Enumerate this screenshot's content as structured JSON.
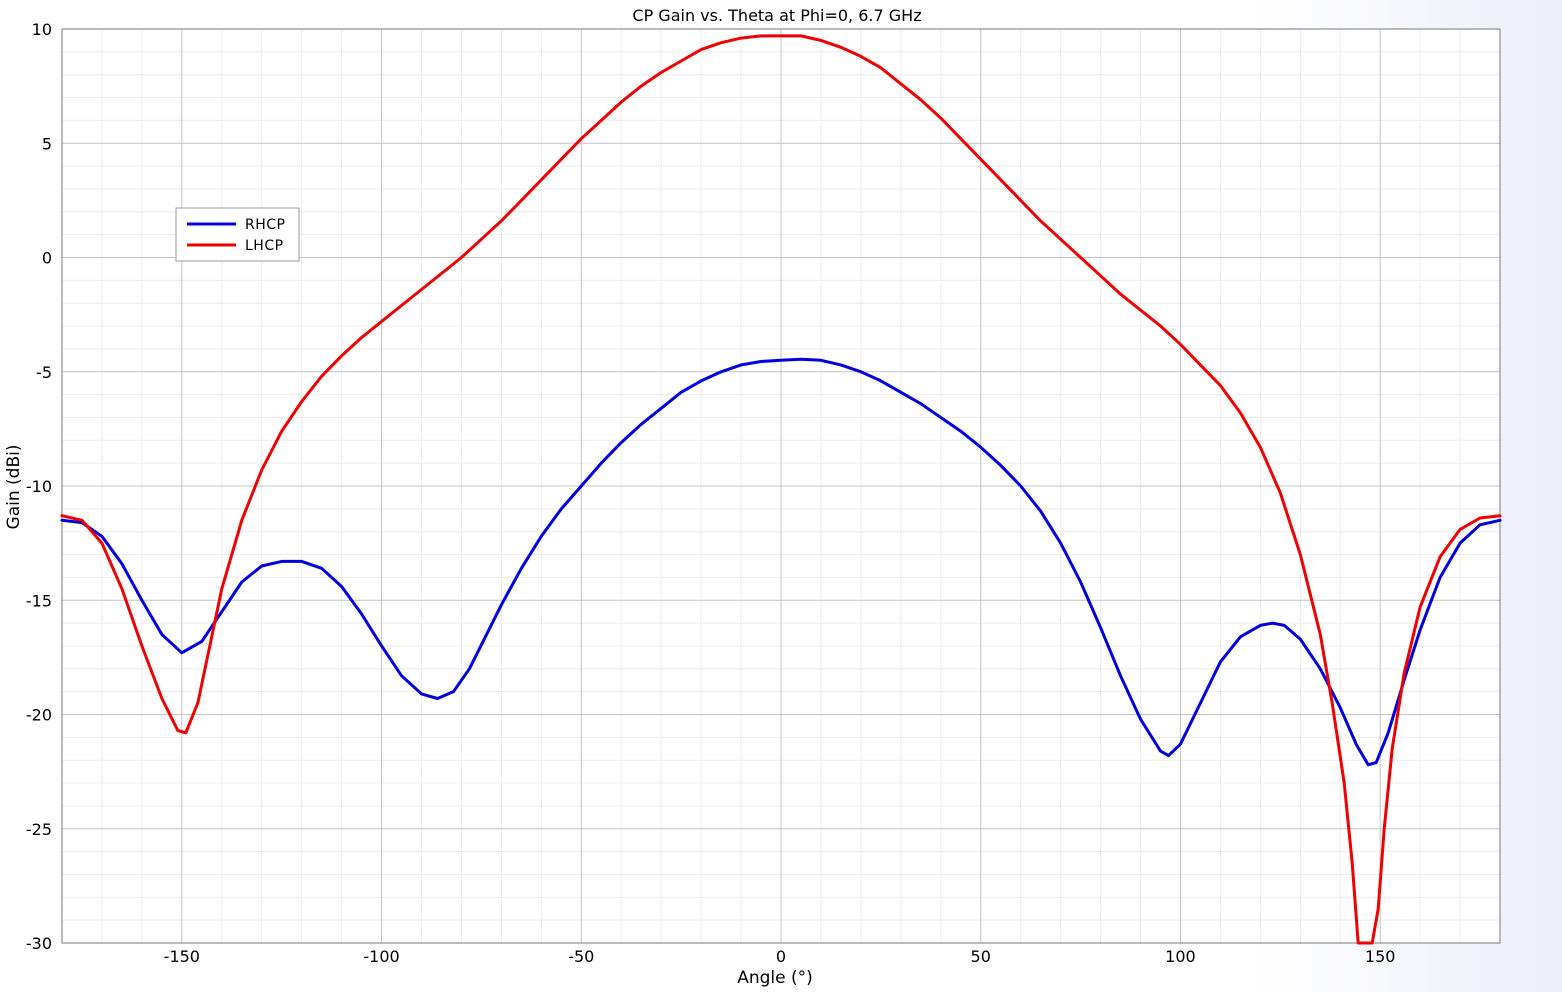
{
  "chart_data": {
    "type": "line",
    "title": "CP Gain vs. Theta at Phi=0, 6.7 GHz",
    "xlabel": "Angle (°)",
    "ylabel": "Gain (dBi)",
    "xlim": [
      -180,
      180
    ],
    "ylim": [
      -30,
      10
    ],
    "x_ticks": [
      -150,
      -100,
      -50,
      0,
      50,
      100,
      150
    ],
    "y_ticks": [
      10,
      5,
      0,
      -5,
      -10,
      -15,
      -20,
      -25,
      -30
    ],
    "grid": true,
    "legend_position": "top-left",
    "series": [
      {
        "name": "RHCP",
        "color": "#0000dd",
        "points": [
          [
            -180,
            -11.5
          ],
          [
            -175,
            -11.6
          ],
          [
            -170,
            -12.2
          ],
          [
            -165,
            -13.4
          ],
          [
            -160,
            -15.0
          ],
          [
            -155,
            -16.5
          ],
          [
            -150,
            -17.3
          ],
          [
            -145,
            -16.8
          ],
          [
            -140,
            -15.5
          ],
          [
            -135,
            -14.2
          ],
          [
            -130,
            -13.5
          ],
          [
            -125,
            -13.3
          ],
          [
            -120,
            -13.3
          ],
          [
            -115,
            -13.6
          ],
          [
            -110,
            -14.4
          ],
          [
            -105,
            -15.6
          ],
          [
            -100,
            -17.0
          ],
          [
            -95,
            -18.3
          ],
          [
            -90,
            -19.1
          ],
          [
            -86,
            -19.3
          ],
          [
            -82,
            -19.0
          ],
          [
            -78,
            -18.0
          ],
          [
            -74,
            -16.6
          ],
          [
            -70,
            -15.2
          ],
          [
            -65,
            -13.6
          ],
          [
            -60,
            -12.2
          ],
          [
            -55,
            -11.0
          ],
          [
            -50,
            -10.0
          ],
          [
            -45,
            -9.0
          ],
          [
            -40,
            -8.1
          ],
          [
            -35,
            -7.3
          ],
          [
            -30,
            -6.6
          ],
          [
            -25,
            -5.9
          ],
          [
            -20,
            -5.4
          ],
          [
            -15,
            -5.0
          ],
          [
            -10,
            -4.7
          ],
          [
            -5,
            -4.55
          ],
          [
            0,
            -4.5
          ],
          [
            5,
            -4.45
          ],
          [
            10,
            -4.5
          ],
          [
            15,
            -4.7
          ],
          [
            20,
            -5.0
          ],
          [
            25,
            -5.4
          ],
          [
            30,
            -5.9
          ],
          [
            35,
            -6.4
          ],
          [
            40,
            -7.0
          ],
          [
            45,
            -7.6
          ],
          [
            50,
            -8.3
          ],
          [
            55,
            -9.1
          ],
          [
            60,
            -10.0
          ],
          [
            65,
            -11.1
          ],
          [
            70,
            -12.5
          ],
          [
            75,
            -14.2
          ],
          [
            80,
            -16.2
          ],
          [
            85,
            -18.3
          ],
          [
            90,
            -20.2
          ],
          [
            95,
            -21.6
          ],
          [
            97,
            -21.8
          ],
          [
            100,
            -21.3
          ],
          [
            105,
            -19.5
          ],
          [
            110,
            -17.7
          ],
          [
            115,
            -16.6
          ],
          [
            120,
            -16.1
          ],
          [
            123,
            -16.0
          ],
          [
            126,
            -16.1
          ],
          [
            130,
            -16.7
          ],
          [
            135,
            -18.0
          ],
          [
            140,
            -19.7
          ],
          [
            144,
            -21.3
          ],
          [
            147,
            -22.2
          ],
          [
            149,
            -22.1
          ],
          [
            152,
            -20.8
          ],
          [
            156,
            -18.5
          ],
          [
            160,
            -16.3
          ],
          [
            165,
            -14.0
          ],
          [
            170,
            -12.5
          ],
          [
            175,
            -11.7
          ],
          [
            180,
            -11.5
          ]
        ]
      },
      {
        "name": "LHCP",
        "color": "#ee0000",
        "points": [
          [
            -180,
            -11.3
          ],
          [
            -175,
            -11.5
          ],
          [
            -170,
            -12.5
          ],
          [
            -165,
            -14.5
          ],
          [
            -160,
            -17.0
          ],
          [
            -155,
            -19.3
          ],
          [
            -151,
            -20.7
          ],
          [
            -149,
            -20.8
          ],
          [
            -146,
            -19.5
          ],
          [
            -143,
            -17.0
          ],
          [
            -140,
            -14.5
          ],
          [
            -135,
            -11.5
          ],
          [
            -130,
            -9.3
          ],
          [
            -125,
            -7.6
          ],
          [
            -120,
            -6.3
          ],
          [
            -115,
            -5.2
          ],
          [
            -110,
            -4.3
          ],
          [
            -105,
            -3.5
          ],
          [
            -100,
            -2.8
          ],
          [
            -95,
            -2.1
          ],
          [
            -90,
            -1.4
          ],
          [
            -85,
            -0.7
          ],
          [
            -80,
            0.0
          ],
          [
            -75,
            0.8
          ],
          [
            -70,
            1.6
          ],
          [
            -65,
            2.5
          ],
          [
            -60,
            3.4
          ],
          [
            -55,
            4.3
          ],
          [
            -50,
            5.2
          ],
          [
            -45,
            6.0
          ],
          [
            -40,
            6.8
          ],
          [
            -35,
            7.5
          ],
          [
            -30,
            8.1
          ],
          [
            -25,
            8.6
          ],
          [
            -20,
            9.1
          ],
          [
            -15,
            9.4
          ],
          [
            -10,
            9.6
          ],
          [
            -5,
            9.7
          ],
          [
            0,
            9.7
          ],
          [
            5,
            9.7
          ],
          [
            10,
            9.5
          ],
          [
            15,
            9.2
          ],
          [
            20,
            8.8
          ],
          [
            25,
            8.3
          ],
          [
            30,
            7.6
          ],
          [
            35,
            6.9
          ],
          [
            40,
            6.1
          ],
          [
            45,
            5.2
          ],
          [
            50,
            4.3
          ],
          [
            55,
            3.4
          ],
          [
            60,
            2.5
          ],
          [
            65,
            1.6
          ],
          [
            70,
            0.8
          ],
          [
            75,
            0.0
          ],
          [
            80,
            -0.8
          ],
          [
            85,
            -1.6
          ],
          [
            90,
            -2.3
          ],
          [
            95,
            -3.0
          ],
          [
            100,
            -3.8
          ],
          [
            105,
            -4.7
          ],
          [
            110,
            -5.6
          ],
          [
            115,
            -6.8
          ],
          [
            120,
            -8.3
          ],
          [
            125,
            -10.3
          ],
          [
            130,
            -13.0
          ],
          [
            135,
            -16.5
          ],
          [
            138,
            -19.5
          ],
          [
            141,
            -23.0
          ],
          [
            143,
            -26.5
          ],
          [
            144.5,
            -30
          ],
          [
            148,
            -30
          ],
          [
            149.5,
            -28.5
          ],
          [
            151,
            -25.0
          ],
          [
            153,
            -21.5
          ],
          [
            156,
            -18.2
          ],
          [
            160,
            -15.3
          ],
          [
            165,
            -13.1
          ],
          [
            170,
            -11.9
          ],
          [
            175,
            -11.4
          ],
          [
            180,
            -11.3
          ]
        ]
      }
    ]
  }
}
